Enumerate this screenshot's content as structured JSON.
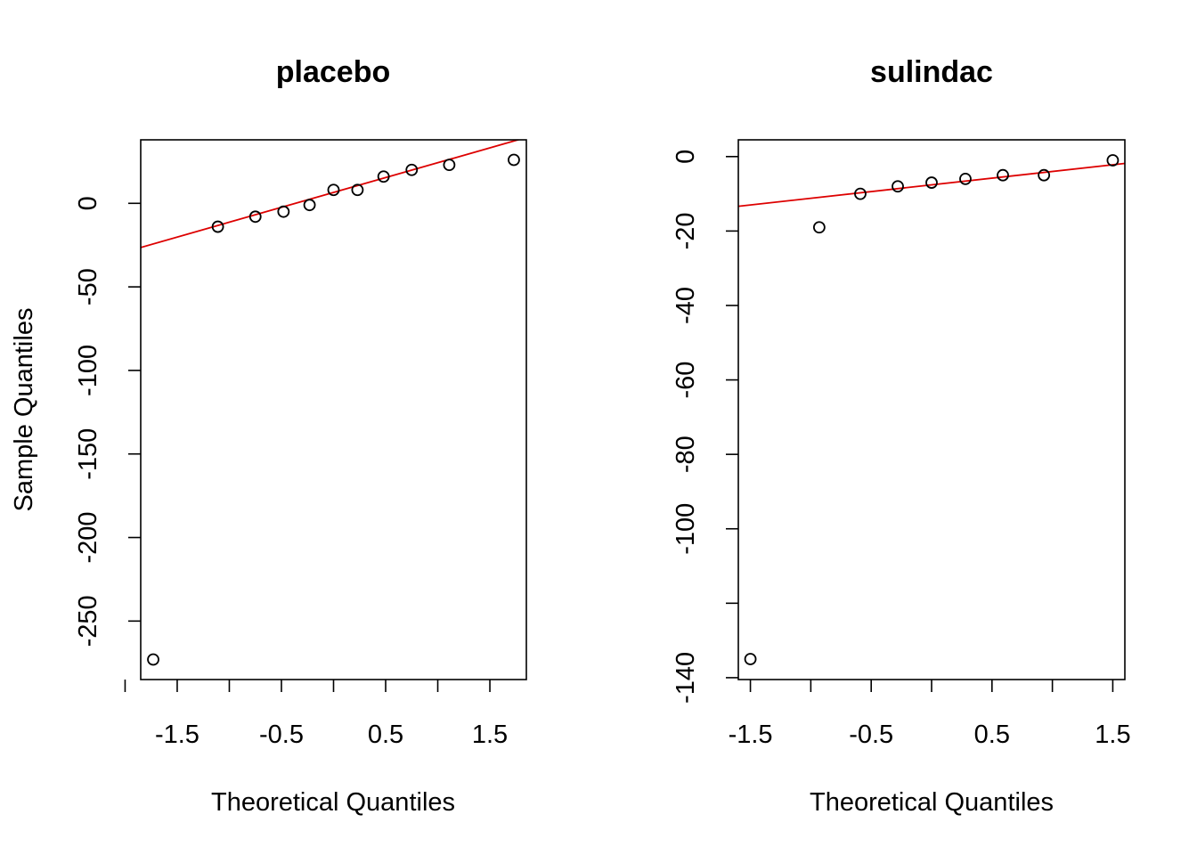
{
  "colors": {
    "points": "#000000",
    "reference_line": "#dd0000",
    "frame": "#000000",
    "background": "#ffffff"
  },
  "chart_data": [
    {
      "type": "scatter",
      "title": "placebo",
      "xlabel": "Theoretical Quantiles",
      "ylabel": "Sample Quantiles",
      "xlim": [
        -1.85,
        1.85
      ],
      "ylim": [
        -285,
        38
      ],
      "x_ticks": [
        -2.0,
        -1.5,
        -1.0,
        -0.5,
        0.0,
        0.5,
        1.0,
        1.5
      ],
      "x_tick_labels": [
        "-1.5",
        "-0.5",
        "0.5",
        "1.5"
      ],
      "x_tick_label_values": [
        -1.5,
        -0.5,
        0.5,
        1.5
      ],
      "y_ticks": [
        0,
        -50,
        -100,
        -150,
        -200,
        -250
      ],
      "y_tick_labels": [
        "0",
        "-50",
        "-100",
        "-150",
        "-200",
        "-250"
      ],
      "points": [
        {
          "x": -1.73,
          "y": -273
        },
        {
          "x": -1.11,
          "y": -14
        },
        {
          "x": -0.75,
          "y": -8
        },
        {
          "x": -0.48,
          "y": -5
        },
        {
          "x": -0.23,
          "y": -1
        },
        {
          "x": 0.0,
          "y": 8
        },
        {
          "x": 0.23,
          "y": 8
        },
        {
          "x": 0.48,
          "y": 16
        },
        {
          "x": 0.75,
          "y": 20
        },
        {
          "x": 1.11,
          "y": 23
        },
        {
          "x": 1.73,
          "y": 26
        }
      ],
      "reference_line": {
        "intercept": 6.5,
        "slope": 17.8
      }
    },
    {
      "type": "scatter",
      "title": "sulindac",
      "xlabel": "Theoretical Quantiles",
      "ylabel": "",
      "xlim": [
        -1.6,
        1.6
      ],
      "ylim": [
        -140.5,
        4.5
      ],
      "x_ticks": [
        -1.5,
        -1.0,
        -0.5,
        0.0,
        0.5,
        1.0,
        1.5
      ],
      "x_tick_labels": [
        "-1.5",
        "-0.5",
        "0.5",
        "1.5"
      ],
      "x_tick_label_values": [
        -1.5,
        -0.5,
        0.5,
        1.5
      ],
      "y_ticks": [
        0,
        -20,
        -40,
        -60,
        -80,
        -100,
        -120,
        -140
      ],
      "y_tick_labels": [
        "0",
        "-20",
        "-40",
        "-60",
        "-80",
        "-100",
        "",
        "-140"
      ],
      "points": [
        {
          "x": -1.5,
          "y": -135
        },
        {
          "x": -0.93,
          "y": -19
        },
        {
          "x": -0.59,
          "y": -10
        },
        {
          "x": -0.28,
          "y": -8
        },
        {
          "x": 0.0,
          "y": -7
        },
        {
          "x": 0.28,
          "y": -6
        },
        {
          "x": 0.59,
          "y": -5
        },
        {
          "x": 0.93,
          "y": -5
        },
        {
          "x": 1.5,
          "y": -1
        }
      ],
      "reference_line": {
        "intercept": -7.6,
        "slope": 3.6
      }
    }
  ]
}
